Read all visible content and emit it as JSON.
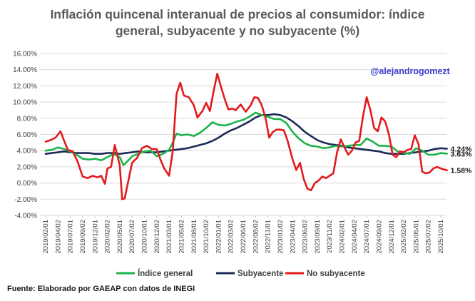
{
  "chart_data": {
    "type": "line",
    "title_line1": "Inflación quincenal interanual de precios al consumidor: índice",
    "title_line2": "general, subyacente y no subyacente (%)",
    "handle": "@alejandrogomezt",
    "source": "Fuente: Elaborado por GAEAP con datos de INEGI",
    "ylim": [
      -4,
      16
    ],
    "ytick_labels": [
      "-4.00%",
      "-2.00%",
      "0.00%",
      "2.00%",
      "4.00%",
      "6.00%",
      "8.00%",
      "10.00%",
      "12.00%",
      "14.00%",
      "16.00%"
    ],
    "x_tick_labels": [
      "2019/02/01",
      "2019/04/02",
      "2019/07/01",
      "2019/09/02",
      "2019/12/01",
      "2020/02/02",
      "2020/05/01",
      "2020/07/02",
      "2020/10/01",
      "2020/12/02",
      "2021/03/01",
      "2021/05/02",
      "2021/08/01",
      "2021/10/02",
      "2022/01/01",
      "2022/03/02",
      "2022/06/01",
      "2022/08/02",
      "2022/11/01",
      "2023/01/02",
      "2023/04/01",
      "2023/06/02",
      "2023/09/01",
      "2023/11/02",
      "2024/02/01",
      "2024/04/02",
      "2024/07/01",
      "2024/09/02",
      "2024/12/01",
      "2025/02/02",
      "2025/05/01",
      "2025/07/02",
      "2025/10/01"
    ],
    "series": [
      {
        "name": "Índice general",
        "color": "#1db34a",
        "end_label": "3.63%",
        "points": [
          [
            0,
            4.0
          ],
          [
            0.5,
            4.1
          ],
          [
            1,
            4.4
          ],
          [
            1.5,
            4.2
          ],
          [
            2,
            3.9
          ],
          [
            2.5,
            3.5
          ],
          [
            3,
            3.0
          ],
          [
            3.5,
            2.9
          ],
          [
            4,
            3.0
          ],
          [
            4.5,
            2.8
          ],
          [
            5,
            3.2
          ],
          [
            5.5,
            3.6
          ],
          [
            6,
            3.2
          ],
          [
            6.3,
            2.2
          ],
          [
            6.7,
            2.8
          ],
          [
            7,
            3.3
          ],
          [
            7.5,
            3.6
          ],
          [
            8,
            3.9
          ],
          [
            8.5,
            4.0
          ],
          [
            9,
            3.3
          ],
          [
            9.5,
            3.6
          ],
          [
            10,
            4.1
          ],
          [
            10.3,
            5.0
          ],
          [
            10.6,
            6.1
          ],
          [
            11,
            5.9
          ],
          [
            11.5,
            6.0
          ],
          [
            12,
            5.8
          ],
          [
            12.5,
            6.2
          ],
          [
            13,
            6.8
          ],
          [
            13.5,
            7.5
          ],
          [
            14,
            7.2
          ],
          [
            14.5,
            7.1
          ],
          [
            15,
            7.3
          ],
          [
            15.5,
            7.6
          ],
          [
            16,
            7.8
          ],
          [
            16.5,
            8.2
          ],
          [
            17,
            8.7
          ],
          [
            17.5,
            8.4
          ],
          [
            18,
            8.2
          ],
          [
            18.5,
            7.9
          ],
          [
            19,
            7.9
          ],
          [
            19.5,
            7.4
          ],
          [
            20,
            6.3
          ],
          [
            20.5,
            5.5
          ],
          [
            21,
            4.9
          ],
          [
            21.5,
            4.6
          ],
          [
            22,
            4.5
          ],
          [
            22.5,
            4.3
          ],
          [
            23,
            4.4
          ],
          [
            23.5,
            4.6
          ],
          [
            24,
            4.5
          ],
          [
            24.5,
            4.6
          ],
          [
            25,
            4.7
          ],
          [
            25.5,
            4.7
          ],
          [
            26,
            5.5
          ],
          [
            26.5,
            5.1
          ],
          [
            27,
            4.6
          ],
          [
            27.5,
            4.6
          ],
          [
            28,
            4.5
          ],
          [
            28.5,
            3.9
          ],
          [
            29,
            3.7
          ],
          [
            29.5,
            3.6
          ],
          [
            30,
            4.3
          ],
          [
            30.5,
            4.0
          ],
          [
            31,
            3.5
          ],
          [
            31.5,
            3.5
          ],
          [
            32,
            3.7
          ],
          [
            32.5,
            3.63
          ]
        ]
      },
      {
        "name": "Subyacente",
        "color": "#1b2a57",
        "end_label": "4.24%",
        "points": [
          [
            0,
            3.6
          ],
          [
            0.5,
            3.7
          ],
          [
            1,
            3.8
          ],
          [
            1.5,
            3.9
          ],
          [
            2,
            3.8
          ],
          [
            2.5,
            3.7
          ],
          [
            3,
            3.7
          ],
          [
            3.5,
            3.7
          ],
          [
            4,
            3.6
          ],
          [
            4.5,
            3.6
          ],
          [
            5,
            3.7
          ],
          [
            5.5,
            3.7
          ],
          [
            6,
            3.6
          ],
          [
            6.5,
            3.7
          ],
          [
            7,
            3.8
          ],
          [
            7.5,
            3.9
          ],
          [
            8,
            3.8
          ],
          [
            8.5,
            3.8
          ],
          [
            9,
            3.8
          ],
          [
            9.5,
            3.9
          ],
          [
            10,
            4.0
          ],
          [
            10.5,
            4.1
          ],
          [
            11,
            4.2
          ],
          [
            11.5,
            4.3
          ],
          [
            12,
            4.5
          ],
          [
            12.5,
            4.7
          ],
          [
            13,
            4.9
          ],
          [
            13.5,
            5.2
          ],
          [
            14,
            5.6
          ],
          [
            14.5,
            6.1
          ],
          [
            15,
            6.5
          ],
          [
            15.5,
            6.8
          ],
          [
            16,
            7.2
          ],
          [
            16.5,
            7.6
          ],
          [
            17,
            8.1
          ],
          [
            17.5,
            8.4
          ],
          [
            18,
            8.4
          ],
          [
            18.5,
            8.5
          ],
          [
            19,
            8.4
          ],
          [
            19.5,
            8.1
          ],
          [
            20,
            7.6
          ],
          [
            20.5,
            7.0
          ],
          [
            21,
            6.3
          ],
          [
            21.5,
            5.8
          ],
          [
            22,
            5.3
          ],
          [
            22.5,
            5.0
          ],
          [
            23,
            4.8
          ],
          [
            23.5,
            4.7
          ],
          [
            24,
            4.6
          ],
          [
            24.5,
            4.4
          ],
          [
            25,
            4.3
          ],
          [
            25.5,
            4.2
          ],
          [
            26,
            4.1
          ],
          [
            26.5,
            4.0
          ],
          [
            27,
            3.9
          ],
          [
            27.5,
            3.7
          ],
          [
            28,
            3.6
          ],
          [
            28.5,
            3.6
          ],
          [
            29,
            3.6
          ],
          [
            29.5,
            3.7
          ],
          [
            30,
            3.8
          ],
          [
            30.5,
            3.9
          ],
          [
            31,
            4.0
          ],
          [
            31.5,
            4.2
          ],
          [
            32,
            4.3
          ],
          [
            32.5,
            4.24
          ]
        ]
      },
      {
        "name": "No subyacente",
        "color": "#e31a1c",
        "end_label": "1.58%",
        "points": [
          [
            0,
            5.1
          ],
          [
            0.4,
            5.3
          ],
          [
            0.8,
            5.6
          ],
          [
            1.2,
            6.4
          ],
          [
            1.5,
            5.2
          ],
          [
            1.8,
            4.1
          ],
          [
            2.2,
            3.9
          ],
          [
            2.6,
            2.6
          ],
          [
            3,
            0.8
          ],
          [
            3.4,
            0.6
          ],
          [
            3.8,
            0.9
          ],
          [
            4.2,
            0.7
          ],
          [
            4.5,
            0.9
          ],
          [
            4.8,
            -0.1
          ],
          [
            5,
            1.8
          ],
          [
            5.3,
            2.0
          ],
          [
            5.6,
            4.7
          ],
          [
            6,
            2.2
          ],
          [
            6.2,
            -2.0
          ],
          [
            6.4,
            -1.9
          ],
          [
            6.7,
            0.3
          ],
          [
            7,
            2.5
          ],
          [
            7.4,
            3.1
          ],
          [
            7.8,
            4.3
          ],
          [
            8.2,
            4.6
          ],
          [
            8.6,
            4.2
          ],
          [
            9,
            4.2
          ],
          [
            9.3,
            2.9
          ],
          [
            9.6,
            1.8
          ],
          [
            10,
            0.9
          ],
          [
            10.3,
            4.0
          ],
          [
            10.6,
            11.0
          ],
          [
            10.9,
            12.4
          ],
          [
            11.2,
            10.8
          ],
          [
            11.6,
            10.6
          ],
          [
            12,
            9.6
          ],
          [
            12.3,
            8.1
          ],
          [
            12.7,
            8.9
          ],
          [
            13,
            9.9
          ],
          [
            13.3,
            8.9
          ],
          [
            13.6,
            11.3
          ],
          [
            13.9,
            13.5
          ],
          [
            14.2,
            11.9
          ],
          [
            14.5,
            10.4
          ],
          [
            14.8,
            9.1
          ],
          [
            15.1,
            9.2
          ],
          [
            15.4,
            9.0
          ],
          [
            15.8,
            9.7
          ],
          [
            16.2,
            8.8
          ],
          [
            16.6,
            9.6
          ],
          [
            16.9,
            10.6
          ],
          [
            17.2,
            10.5
          ],
          [
            17.5,
            9.6
          ],
          [
            17.8,
            8.1
          ],
          [
            18.1,
            5.6
          ],
          [
            18.4,
            6.3
          ],
          [
            18.7,
            6.6
          ],
          [
            19,
            6.6
          ],
          [
            19.3,
            6.5
          ],
          [
            19.6,
            5.2
          ],
          [
            20,
            2.9
          ],
          [
            20.3,
            1.6
          ],
          [
            20.6,
            2.5
          ],
          [
            20.9,
            0.5
          ],
          [
            21.2,
            -0.7
          ],
          [
            21.5,
            -0.9
          ],
          [
            21.8,
            0.0
          ],
          [
            22.1,
            0.3
          ],
          [
            22.4,
            0.8
          ],
          [
            22.7,
            0.6
          ],
          [
            23,
            0.9
          ],
          [
            23.3,
            1.2
          ],
          [
            23.6,
            3.8
          ],
          [
            23.9,
            5.4
          ],
          [
            24.2,
            4.4
          ],
          [
            24.5,
            3.5
          ],
          [
            24.8,
            4.0
          ],
          [
            25.1,
            5.0
          ],
          [
            25.4,
            5.2
          ],
          [
            25.7,
            8.2
          ],
          [
            26,
            10.6
          ],
          [
            26.3,
            9.0
          ],
          [
            26.6,
            6.8
          ],
          [
            26.9,
            6.4
          ],
          [
            27.2,
            8.1
          ],
          [
            27.5,
            7.6
          ],
          [
            27.8,
            6.0
          ],
          [
            28.1,
            3.5
          ],
          [
            28.4,
            3.2
          ],
          [
            28.7,
            3.9
          ],
          [
            29,
            3.8
          ],
          [
            29.3,
            4.1
          ],
          [
            29.6,
            4.2
          ],
          [
            29.9,
            5.9
          ],
          [
            30.2,
            4.8
          ],
          [
            30.5,
            1.4
          ],
          [
            30.8,
            1.2
          ],
          [
            31.1,
            1.3
          ],
          [
            31.4,
            1.8
          ],
          [
            31.7,
            2.0
          ],
          [
            32,
            1.8
          ],
          [
            32.5,
            1.58
          ]
        ]
      }
    ]
  }
}
